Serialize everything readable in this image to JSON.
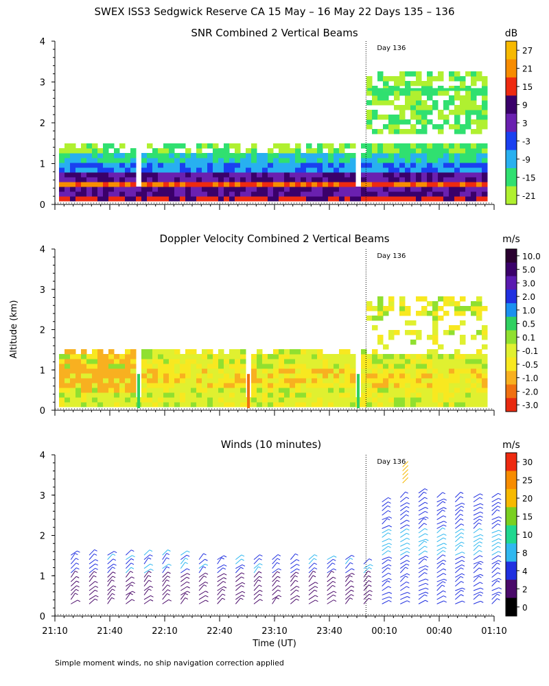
{
  "figure_title": "SWEX ISS3 Sedgwick Reserve CA  15 May – 16 May 22 Days 135 – 136",
  "ylabel": "Altitude (km)",
  "xlabel": "Time (UT)",
  "footnote": "Simple moment winds, no ship navigation correction applied",
  "day_marker_label": "Day 136",
  "chart_data": [
    {
      "type": "heatmap",
      "title": "SNR Combined 2 Vertical Beams",
      "ylabel": "Altitude (km)",
      "ylim": [
        0,
        4
      ],
      "yticks": [
        0,
        1,
        2,
        3,
        4
      ],
      "xlim_minutes_since_21_10": [
        0,
        240
      ],
      "day_marker_minutes": 170,
      "colorbar": {
        "unit": "dB",
        "tick_labels": [
          "27",
          "21",
          "15",
          "9",
          "3",
          "-3",
          "-9",
          "-15",
          "-21"
        ],
        "colors": [
          "#f7b900",
          "#f78c00",
          "#ee2a10",
          "#3a006a",
          "#6a20b0",
          "#1a40f0",
          "#28b0f0",
          "#30e070",
          "#b0f030"
        ]
      },
      "description_bands": [
        {
          "segment": "day135",
          "altitude_top_km": 1.4,
          "pattern": "strong near surface, weakening with height"
        },
        {
          "segment": "day136",
          "altitude_top_km": 3.2,
          "pattern": "strong near surface, weaker echoes 1.7-3.2 km"
        }
      ]
    },
    {
      "type": "heatmap",
      "title": "Doppler Velocity Combined 2 Vertical Beams",
      "ylabel": "Altitude (km)",
      "ylim": [
        0,
        4
      ],
      "yticks": [
        0,
        1,
        2,
        3,
        4
      ],
      "day_marker_minutes": 170,
      "colorbar": {
        "unit": "m/s",
        "tick_labels": [
          "10.0",
          "5.0",
          "3.0",
          "2.0",
          "1.0",
          "0.5",
          "0.1",
          "-0.1",
          "-0.5",
          "-1.0",
          "-2.0",
          "-3.0"
        ],
        "colors": [
          "#2a0030",
          "#3a006a",
          "#5a1ab0",
          "#2030e0",
          "#1a90f0",
          "#30d060",
          "#90e030",
          "#e0f030",
          "#f8e820",
          "#f8b020",
          "#f07010",
          "#e82a10"
        ]
      }
    },
    {
      "type": "scatter",
      "title": "Winds (10 minutes)",
      "ylabel": "Altitude (km)",
      "ylim": [
        0,
        4
      ],
      "yticks": [
        0,
        1,
        2,
        3,
        4
      ],
      "xlabel": "Time (UT)",
      "xticks": [
        "21:10",
        "21:40",
        "22:10",
        "22:40",
        "23:10",
        "23:40",
        "00:10",
        "00:40",
        "01:10"
      ],
      "xtick_minutes": [
        0,
        30,
        60,
        90,
        120,
        150,
        180,
        210,
        240
      ],
      "day_marker_minutes": 170,
      "colorbar": {
        "unit": "m/s",
        "tick_labels": [
          "30",
          "25",
          "20",
          "15",
          "10",
          "8",
          "4",
          "2",
          "0"
        ],
        "colors": [
          "#ee2a10",
          "#f78c00",
          "#f7b900",
          "#7ad020",
          "#20d890",
          "#30b8f0",
          "#2030e0",
          "#4a0a6a",
          "#000000"
        ]
      },
      "profiles_minutes": [
        5,
        15,
        25,
        35,
        45,
        55,
        65,
        75,
        85,
        95,
        105,
        115,
        125,
        135,
        145,
        155,
        165,
        175,
        185,
        195,
        205,
        215,
        225,
        235
      ],
      "profile_top_km": [
        1.6,
        1.6,
        1.6,
        1.6,
        1.6,
        1.6,
        1.6,
        1.5,
        1.5,
        1.5,
        1.5,
        1.5,
        1.5,
        1.5,
        1.5,
        1.5,
        1.3,
        2.9,
        3.0,
        3.1,
        3.0,
        3.0,
        3.0,
        3.0
      ]
    }
  ],
  "panels": [
    {
      "title": "SNR Combined 2 Vertical Beams",
      "cb_unit": "dB"
    },
    {
      "title": "Doppler Velocity Combined 2 Vertical Beams",
      "cb_unit": "m/s"
    },
    {
      "title": "Winds (10 minutes)",
      "cb_unit": "m/s"
    }
  ]
}
